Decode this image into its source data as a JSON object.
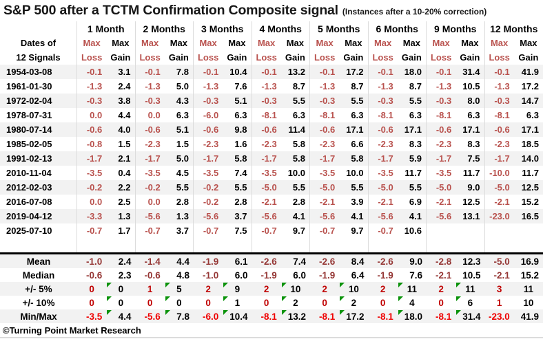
{
  "colors": {
    "loss_text": "#B9524E",
    "summary_loss": "#953735",
    "count_loss": "#C00000",
    "minmax_loss": "#EF0000",
    "triangle_green": "#0C930C",
    "row_stripe": "#F2F2F2",
    "grid_line": "#DCDCDC"
  },
  "chart_data": {
    "type": "table",
    "title": "S&P 500 after a TCTM Confirmation Composite signal",
    "subtitle": "(Instances after a 10-20% correction)",
    "footer": "©Turning Point Market Research",
    "row_header": [
      "Dates of",
      "12 Signals"
    ],
    "col_groups": [
      "1 Month",
      "2 Months",
      "3 Months",
      "4 Months",
      "5 Months",
      "6 Months",
      "9 Months",
      "12 Months"
    ],
    "loss_header": [
      "Max",
      "Loss"
    ],
    "gain_header": [
      "Max",
      "Gain"
    ],
    "rows": [
      {
        "date": "1954-03-08",
        "values": [
          "-0.1",
          "3.1",
          "-0.1",
          "7.8",
          "-0.1",
          "10.4",
          "-0.1",
          "13.2",
          "-0.1",
          "17.2",
          "-0.1",
          "18.0",
          "-0.1",
          "31.4",
          "-0.1",
          "41.9"
        ]
      },
      {
        "date": "1961-01-30",
        "values": [
          "-1.3",
          "2.4",
          "-1.3",
          "5.0",
          "-1.3",
          "7.6",
          "-1.3",
          "8.7",
          "-1.3",
          "8.7",
          "-1.3",
          "8.7",
          "-1.3",
          "10.5",
          "-1.3",
          "17.2"
        ]
      },
      {
        "date": "1972-02-04",
        "values": [
          "-0.3",
          "3.8",
          "-0.3",
          "4.3",
          "-0.3",
          "5.1",
          "-0.3",
          "5.5",
          "-0.3",
          "5.5",
          "-0.3",
          "5.5",
          "-0.3",
          "8.0",
          "-0.3",
          "14.7"
        ]
      },
      {
        "date": "1978-07-31",
        "values": [
          "0.0",
          "4.4",
          "0.0",
          "6.3",
          "-6.0",
          "6.3",
          "-8.1",
          "6.3",
          "-8.1",
          "6.3",
          "-8.1",
          "6.3",
          "-8.1",
          "6.3",
          "-8.1",
          "6.3"
        ]
      },
      {
        "date": "1980-07-14",
        "values": [
          "-0.6",
          "4.0",
          "-0.6",
          "5.1",
          "-0.6",
          "9.8",
          "-0.6",
          "11.4",
          "-0.6",
          "17.1",
          "-0.6",
          "17.1",
          "-0.6",
          "17.1",
          "-0.6",
          "17.1"
        ]
      },
      {
        "date": "1985-02-05",
        "values": [
          "-0.8",
          "1.5",
          "-2.3",
          "1.5",
          "-2.3",
          "1.6",
          "-2.3",
          "5.8",
          "-2.3",
          "6.6",
          "-2.3",
          "8.3",
          "-2.3",
          "8.3",
          "-2.3",
          "18.5"
        ]
      },
      {
        "date": "1991-02-13",
        "values": [
          "-1.7",
          "2.1",
          "-1.7",
          "5.0",
          "-1.7",
          "5.8",
          "-1.7",
          "5.8",
          "-1.7",
          "5.8",
          "-1.7",
          "5.9",
          "-1.7",
          "7.5",
          "-1.7",
          "14.0"
        ]
      },
      {
        "date": "2010-11-04",
        "values": [
          "-3.5",
          "0.4",
          "-3.5",
          "4.5",
          "-3.5",
          "7.4",
          "-3.5",
          "10.0",
          "-3.5",
          "10.0",
          "-3.5",
          "11.7",
          "-3.5",
          "11.7",
          "-10.0",
          "11.7"
        ]
      },
      {
        "date": "2012-02-03",
        "values": [
          "-0.2",
          "2.2",
          "-0.2",
          "5.5",
          "-0.2",
          "5.5",
          "-5.0",
          "5.5",
          "-5.0",
          "5.5",
          "-5.0",
          "5.5",
          "-5.0",
          "9.0",
          "-5.0",
          "12.5"
        ]
      },
      {
        "date": "2016-07-08",
        "values": [
          "0.0",
          "2.5",
          "0.0",
          "2.8",
          "-0.2",
          "2.8",
          "-2.1",
          "2.8",
          "-2.1",
          "3.9",
          "-2.1",
          "6.9",
          "-2.1",
          "12.5",
          "-2.1",
          "15.2"
        ]
      },
      {
        "date": "2019-04-12",
        "values": [
          "-3.3",
          "1.3",
          "-5.6",
          "1.3",
          "-5.6",
          "3.7",
          "-5.6",
          "4.1",
          "-5.6",
          "4.1",
          "-5.6",
          "4.1",
          "-5.6",
          "13.1",
          "-23.0",
          "16.5"
        ]
      },
      {
        "date": "2025-07-10",
        "values": [
          "-0.7",
          "1.7",
          "-0.7",
          "3.7",
          "-0.7",
          "7.5",
          "-0.7",
          "9.7",
          "-0.7",
          "9.7",
          "-0.7",
          "10.6",
          "",
          "",
          "",
          ""
        ]
      }
    ],
    "summary_rows": [
      {
        "label": "Mean",
        "loss_style": "dark",
        "align": "right",
        "has_triangles": false,
        "values": [
          "-1.0",
          "2.4",
          "-1.4",
          "4.4",
          "-1.9",
          "6.1",
          "-2.6",
          "7.4",
          "-2.6",
          "8.4",
          "-2.6",
          "9.0",
          "-2.8",
          "12.3",
          "-5.0",
          "16.9"
        ]
      },
      {
        "label": "Median",
        "loss_style": "dark",
        "align": "right",
        "has_triangles": false,
        "values": [
          "-0.6",
          "2.3",
          "-0.6",
          "4.8",
          "-1.0",
          "6.0",
          "-1.9",
          "6.0",
          "-1.9",
          "6.4",
          "-1.9",
          "7.6",
          "-2.1",
          "10.5",
          "-2.1",
          "15.2"
        ]
      },
      {
        "label": "+/- 5%",
        "loss_style": "count",
        "align": "center",
        "has_triangles": true,
        "values": [
          "0",
          "0",
          "1",
          "5",
          "2",
          "9",
          "2",
          "10",
          "2",
          "10",
          "2",
          "11",
          "2",
          "11",
          "3",
          "11"
        ]
      },
      {
        "label": "+/- 10%",
        "loss_style": "count",
        "align": "center",
        "has_triangles": true,
        "values": [
          "0",
          "0",
          "0",
          "0",
          "0",
          "1",
          "0",
          "2",
          "0",
          "2",
          "0",
          "4",
          "0",
          "6",
          "1",
          "10"
        ]
      },
      {
        "label": "Min/Max",
        "loss_style": "minmax",
        "align": "right",
        "has_triangles": true,
        "values": [
          "-3.5",
          "4.4",
          "-5.6",
          "7.8",
          "-6.0",
          "10.4",
          "-8.1",
          "13.2",
          "-8.1",
          "17.2",
          "-8.1",
          "18.0",
          "-8.1",
          "31.4",
          "-23.0",
          "41.9"
        ]
      }
    ]
  }
}
